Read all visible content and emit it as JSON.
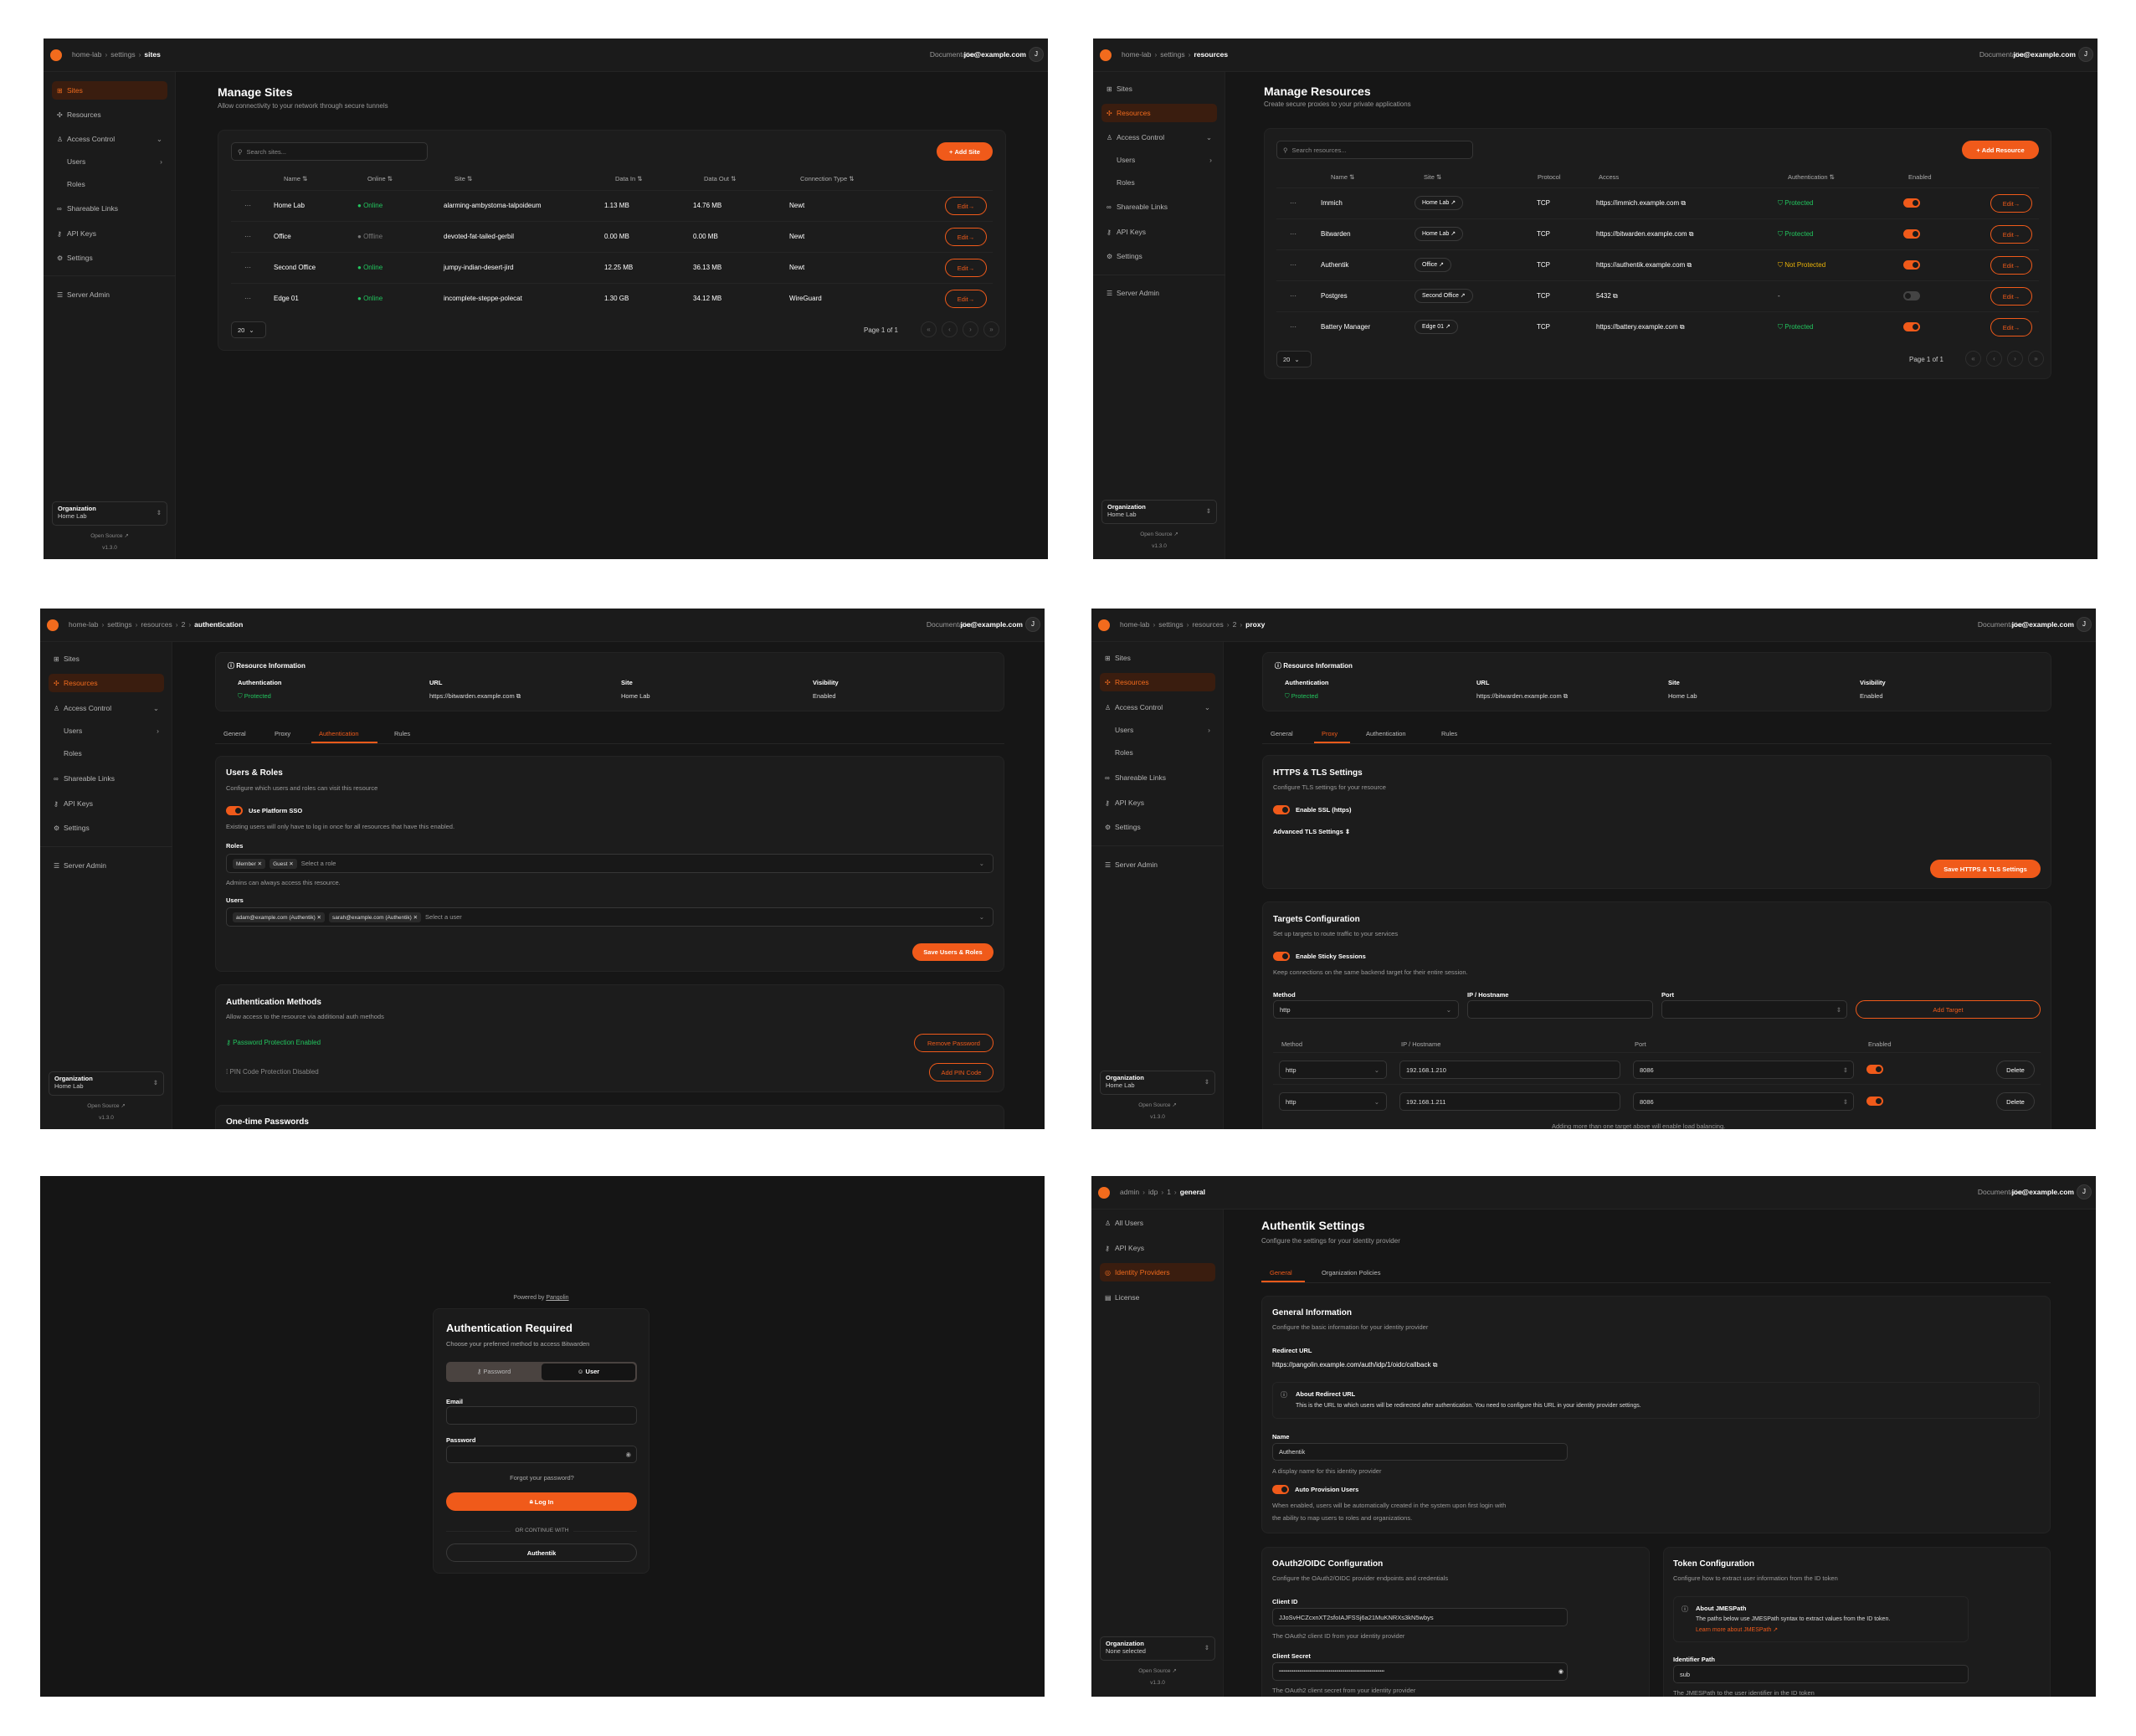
{
  "colors": {
    "accent": "#f05a1a",
    "success": "#22c55e",
    "warning": "#eab308",
    "background": "#161616",
    "card": "#1c1c1c"
  },
  "common": {
    "documentation": "Documentation",
    "user_email": "joe@example.com",
    "avatar_initial": "J",
    "org_label": "Organization",
    "open_source": "Open Source",
    "version": "v1.3.0",
    "edit_label": "Edit",
    "page_size": "20",
    "page_info": "Page 1 of 1"
  },
  "org_sidebar": [
    {
      "label": "Sites",
      "icon": "sites-icon"
    },
    {
      "label": "Resources",
      "icon": "resources-icon"
    },
    {
      "label": "Access Control",
      "icon": "users-icon",
      "chevron": "down"
    },
    {
      "label": "Users",
      "sub": true,
      "chevron": "right"
    },
    {
      "label": "Roles",
      "sub": true
    },
    {
      "label": "Shareable Links",
      "icon": "link-icon"
    },
    {
      "label": "API Keys",
      "icon": "key-icon"
    },
    {
      "label": "Settings",
      "icon": "gear-icon"
    },
    {
      "label": "Server Admin",
      "icon": "server-icon"
    }
  ],
  "admin_sidebar": [
    {
      "label": "All Users",
      "icon": "users-icon"
    },
    {
      "label": "API Keys",
      "icon": "key-icon"
    },
    {
      "label": "Identity Providers",
      "icon": "fingerprint-icon"
    },
    {
      "label": "License",
      "icon": "license-icon"
    }
  ],
  "sites_page": {
    "breadcrumb": [
      "home-lab",
      "settings",
      "sites"
    ],
    "org_name": "Home Lab",
    "title": "Manage Sites",
    "subtitle": "Allow connectivity to your network through secure tunnels",
    "search_placeholder": "Search sites...",
    "add_button": "Add Site",
    "columns": [
      "Name",
      "Online",
      "Site",
      "Data In",
      "Data Out",
      "Connection Type"
    ],
    "rows": [
      {
        "name": "Home Lab",
        "online": "Online",
        "is_online": true,
        "site": "alarming-ambystoma-talpoideum",
        "data_in": "1.13 MB",
        "data_out": "14.76 MB",
        "connection": "Newt"
      },
      {
        "name": "Office",
        "online": "Offline",
        "is_online": false,
        "site": "devoted-fat-tailed-gerbil",
        "data_in": "0.00 MB",
        "data_out": "0.00 MB",
        "connection": "Newt"
      },
      {
        "name": "Second Office",
        "online": "Online",
        "is_online": true,
        "site": "jumpy-indian-desert-jird",
        "data_in": "12.25 MB",
        "data_out": "36.13 MB",
        "connection": "Newt"
      },
      {
        "name": "Edge 01",
        "online": "Online",
        "is_online": true,
        "site": "incomplete-steppe-polecat",
        "data_in": "1.30 GB",
        "data_out": "34.12 MB",
        "connection": "WireGuard"
      }
    ]
  },
  "resources_page": {
    "breadcrumb": [
      "home-lab",
      "settings",
      "resources"
    ],
    "org_name": "Home Lab",
    "title": "Manage Resources",
    "subtitle": "Create secure proxies to your private applications",
    "search_placeholder": "Search resources...",
    "add_button": "Add Resource",
    "columns": [
      "Name",
      "Site",
      "Protocol",
      "Access",
      "Authentication",
      "Enabled"
    ],
    "rows": [
      {
        "name": "Immich",
        "site": "Home Lab",
        "protocol": "TCP",
        "access": "https://immich.example.com",
        "auth": "Protected",
        "auth_state": "protected",
        "enabled": true
      },
      {
        "name": "Bitwarden",
        "site": "Home Lab",
        "protocol": "TCP",
        "access": "https://bitwarden.example.com",
        "auth": "Protected",
        "auth_state": "protected",
        "enabled": true
      },
      {
        "name": "Authentik",
        "site": "Office",
        "protocol": "TCP",
        "access": "https://authentik.example.com",
        "auth": "Not Protected",
        "auth_state": "not-protected",
        "enabled": true
      },
      {
        "name": "Postgres",
        "site": "Second Office",
        "protocol": "TCP",
        "access": "5432",
        "auth": "-",
        "auth_state": "none",
        "enabled": false
      },
      {
        "name": "Battery Manager",
        "site": "Edge 01",
        "protocol": "TCP",
        "access": "https://battery.example.com",
        "auth": "Protected",
        "auth_state": "protected",
        "enabled": true
      }
    ]
  },
  "resource_info": {
    "title": "Resource Information",
    "authentication_label": "Authentication",
    "authentication_value": "Protected",
    "url_label": "URL",
    "url_value": "https://bitwarden.example.com",
    "site_label": "Site",
    "site_value": "Home Lab",
    "visibility_label": "Visibility",
    "visibility_value": "Enabled"
  },
  "resource_tabs": [
    "General",
    "Proxy",
    "Authentication",
    "Rules"
  ],
  "auth_page": {
    "breadcrumb": [
      "home-lab",
      "settings",
      "resources",
      "2",
      "authentication"
    ],
    "org_name": "Home Lab",
    "users_roles": {
      "title": "Users & Roles",
      "description": "Configure which users and roles can visit this resource",
      "sso_label": "Use Platform SSO",
      "sso_enabled": true,
      "sso_help": "Existing users will only have to log in once for all resources that have this enabled.",
      "roles_label": "Roles",
      "roles": [
        "Member",
        "Guest"
      ],
      "roles_placeholder": "Select a role",
      "roles_help": "Admins can always access this resource.",
      "users_label": "Users",
      "users": [
        "adam@example.com (Authentik)",
        "sarah@example.com (Authentik)"
      ],
      "users_placeholder": "Select a user",
      "save_button": "Save Users & Roles"
    },
    "auth_methods": {
      "title": "Authentication Methods",
      "description": "Allow access to the resource via additional auth methods",
      "password_status": "Password Protection Enabled",
      "remove_password": "Remove Password",
      "pin_status": "PIN Code Protection Disabled",
      "add_pin": "Add PIN Code"
    },
    "otp_title": "One-time Passwords"
  },
  "proxy_page": {
    "breadcrumb": [
      "home-lab",
      "settings",
      "resources",
      "2",
      "proxy"
    ],
    "org_name": "Home Lab",
    "tls": {
      "title": "HTTPS & TLS Settings",
      "description": "Configure TLS settings for your resource",
      "ssl_label": "Enable SSL (https)",
      "ssl_enabled": true,
      "advanced": "Advanced TLS Settings",
      "save_button": "Save HTTPS & TLS Settings"
    },
    "targets": {
      "title": "Targets Configuration",
      "description": "Set up targets to route traffic to your services",
      "sticky_label": "Enable Sticky Sessions",
      "sticky_enabled": true,
      "sticky_help": "Keep connections on the same backend target for their entire session.",
      "method_label": "Method",
      "ip_label": "IP / Hostname",
      "port_label": "Port",
      "method_value": "http",
      "ip_value": "",
      "port_value": "",
      "add_button": "Add Target",
      "columns": [
        "Method",
        "IP / Hostname",
        "Port",
        "Enabled"
      ],
      "rows": [
        {
          "method": "http",
          "ip": "192.168.1.210",
          "port": "8086",
          "enabled": true
        },
        {
          "method": "http",
          "ip": "192.168.1.211",
          "port": "8086",
          "enabled": true
        }
      ],
      "delete_label": "Delete",
      "footer": "Adding more than one target above will enable load balancing."
    }
  },
  "login_page": {
    "powered_by": "Powered by",
    "brand_link": "Pangolin",
    "title": "Authentication Required",
    "subtitle": "Choose your preferred method to access Bitwarden",
    "tab_password": "Password",
    "tab_user": "User",
    "active_tab": "User",
    "email_label": "Email",
    "email_value": "",
    "password_label": "Password",
    "password_value": "",
    "forgot": "Forgot your password?",
    "login_button": "Log In",
    "divider": "OR CONTINUE WITH",
    "sso_button": "Authentik"
  },
  "idp_page": {
    "breadcrumb": [
      "admin",
      "idp",
      "1",
      "general"
    ],
    "org_name": "None selected",
    "title": "Authentik Settings",
    "subtitle": "Configure the settings for your identity provider",
    "tabs": [
      "General",
      "Organization Policies"
    ],
    "general": {
      "title": "General Information",
      "description": "Configure the basic information for your identity provider",
      "redirect_label": "Redirect URL",
      "redirect_url": "https://pangolin.example.com/auth/idp/1/oidc/callback",
      "about_title": "About Redirect URL",
      "about_text": "This is the URL to which users will be redirected after authentication. You need to configure this URL in your identity provider settings.",
      "name_label": "Name",
      "name_value": "Authentik",
      "name_help": "A display name for this identity provider",
      "auto_label": "Auto Provision Users",
      "auto_enabled": true,
      "auto_help_1": "When enabled, users will be automatically created in the system upon first login with",
      "auto_help_2": "the ability to map users to roles and organizations."
    },
    "oauth": {
      "title": "OAuth2/OIDC Configuration",
      "description": "Configure the OAuth2/OIDC provider endpoints and credentials",
      "client_id_label": "Client ID",
      "client_id": "JJoSvHCZcxnXT2sfoIAJFSSj6a21MuKNRXs3kN5wbys",
      "client_id_help": "The OAuth2 client ID from your identity provider",
      "secret_label": "Client Secret",
      "secret_value": "••••••••••••••••••••••••••••••••••••••••••••••••••••••••••••••••••••••••",
      "secret_help": "The OAuth2 client secret from your identity provider"
    },
    "token": {
      "title": "Token Configuration",
      "description": "Configure how to extract user information from the ID token",
      "about_title": "About JMESPath",
      "about_text": "The paths below use JMESPath syntax to extract values from the ID token.",
      "about_link": "Learn more about JMESPath",
      "identifier_label": "Identifier Path",
      "identifier_value": "sub",
      "identifier_help": "The JMESPath to the user identifier in the ID token"
    }
  }
}
